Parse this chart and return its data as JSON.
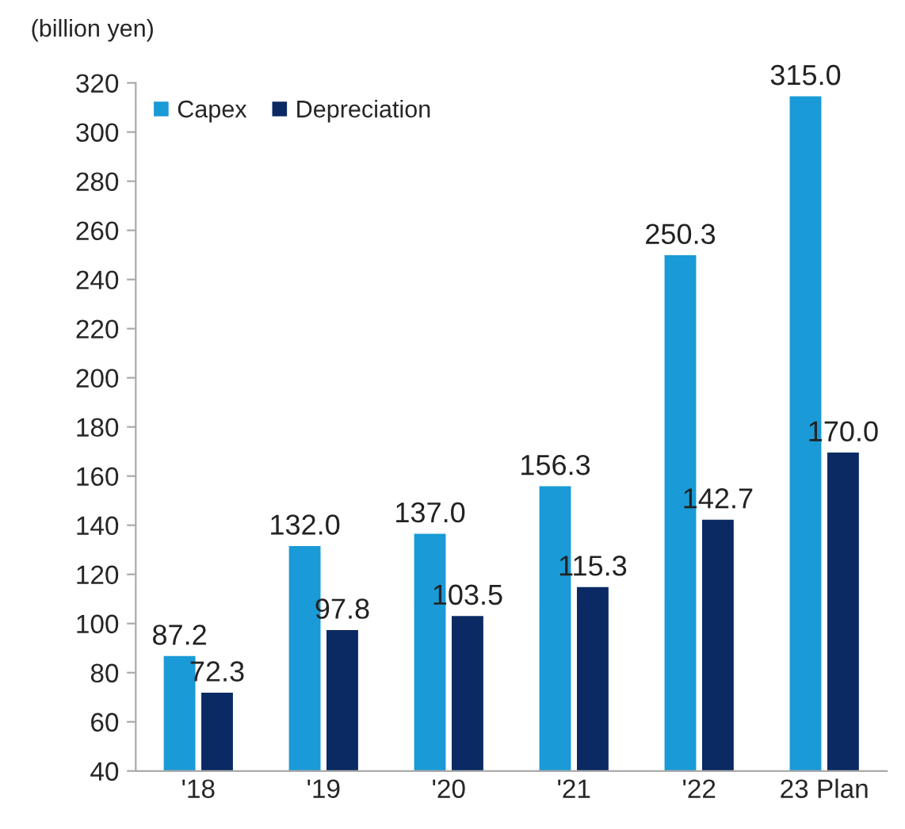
{
  "chart_data": {
    "type": "bar",
    "ylabel": "(billion yen)",
    "categories": [
      "'18",
      "'19",
      "'20",
      "'21",
      "'22",
      "23 Plan"
    ],
    "series": [
      {
        "name": "Capex",
        "color": "#1a9ad6",
        "values": [
          87.2,
          132.0,
          137.0,
          156.3,
          250.3,
          315.0
        ]
      },
      {
        "name": "Depreciation",
        "color": "#0b2a63",
        "values": [
          72.3,
          97.8,
          103.5,
          115.3,
          142.7,
          170.0
        ]
      }
    ],
    "value_labels": [
      [
        "87.2",
        "132.0",
        "137.0",
        "156.3",
        "250.3",
        "315.0"
      ],
      [
        "72.3",
        "97.8",
        "103.5",
        "115.3",
        "142.7",
        "170.0"
      ]
    ],
    "ylim": [
      40,
      320
    ],
    "yticks": [
      40,
      60,
      80,
      100,
      120,
      140,
      160,
      180,
      200,
      220,
      240,
      260,
      280,
      300,
      320
    ],
    "grid": false,
    "legend": "top left"
  }
}
